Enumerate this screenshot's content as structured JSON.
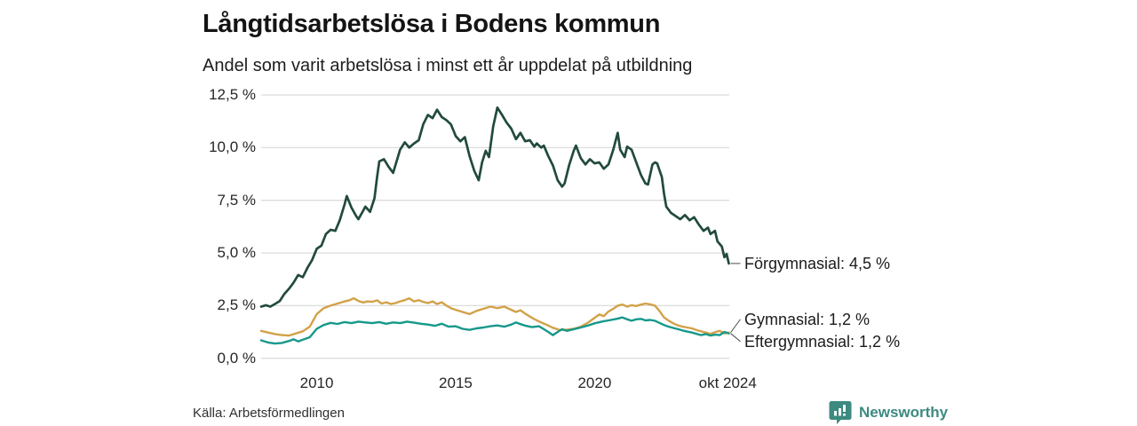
{
  "header": {
    "title": "Långtidsarbetslösa i Bodens kommun",
    "subtitle": "Andel som varit arbetslösa i minst ett år uppdelat på utbildning"
  },
  "footer": {
    "source": "Källa: Arbetsförmedlingen",
    "brand": "Newsworthy"
  },
  "colors": {
    "grid": "#dcdcdc",
    "connector": "#4a4a4a",
    "brand_teal": "#3c8a80",
    "series_forgymnasial": "#224a3f",
    "series_gymnasial": "#d2a148",
    "series_eftergymnasial": "#16988a"
  },
  "chart_data": {
    "type": "line",
    "title": "Långtidsarbetslösa i Bodens kommun",
    "subtitle": "Andel som varit arbetslösa i minst ett år uppdelat på utbildning",
    "unit": "%",
    "grid": "horizontal",
    "legend_position": "end-of-line labels, right side",
    "ylim": [
      0,
      12.5
    ],
    "x_range": [
      2008.0,
      2024.83
    ],
    "y_ticks": [
      {
        "label": "12,5 %",
        "value": 12.5
      },
      {
        "label": "10,0 %",
        "value": 10.0
      },
      {
        "label": "7,5 %",
        "value": 7.5
      },
      {
        "label": "5,0 %",
        "value": 5.0
      },
      {
        "label": "2,5 %",
        "value": 2.5
      },
      {
        "label": "0,0 %",
        "value": 0.0
      }
    ],
    "x_ticks": [
      {
        "label": "2010",
        "year": 2010
      },
      {
        "label": "2015",
        "year": 2015
      },
      {
        "label": "2020",
        "year": 2020
      },
      {
        "label": "okt 2024",
        "year": 2024.79
      }
    ],
    "source": "Källa: Arbetsförmedlingen",
    "series": [
      {
        "name": "Förgymnasial",
        "end_label": "Förgymnasial: 4,5 %",
        "end_value": "4,5 %",
        "color_key": "series_forgymnasial",
        "points": [
          [
            2008.0,
            2.45
          ],
          [
            2008.17,
            2.52
          ],
          [
            2008.33,
            2.45
          ],
          [
            2008.5,
            2.58
          ],
          [
            2008.67,
            2.72
          ],
          [
            2008.83,
            3.05
          ],
          [
            2009.0,
            3.3
          ],
          [
            2009.17,
            3.6
          ],
          [
            2009.33,
            3.95
          ],
          [
            2009.5,
            3.85
          ],
          [
            2009.67,
            4.3
          ],
          [
            2009.83,
            4.65
          ],
          [
            2010.0,
            5.2
          ],
          [
            2010.17,
            5.35
          ],
          [
            2010.33,
            5.9
          ],
          [
            2010.5,
            6.1
          ],
          [
            2010.67,
            6.05
          ],
          [
            2010.83,
            6.55
          ],
          [
            2011.0,
            7.3
          ],
          [
            2011.08,
            7.7
          ],
          [
            2011.25,
            7.15
          ],
          [
            2011.42,
            6.75
          ],
          [
            2011.5,
            6.6
          ],
          [
            2011.67,
            7.0
          ],
          [
            2011.75,
            7.2
          ],
          [
            2011.92,
            6.95
          ],
          [
            2012.08,
            7.6
          ],
          [
            2012.17,
            8.6
          ],
          [
            2012.25,
            9.35
          ],
          [
            2012.42,
            9.45
          ],
          [
            2012.58,
            9.1
          ],
          [
            2012.75,
            8.8
          ],
          [
            2012.92,
            9.55
          ],
          [
            2013.0,
            9.9
          ],
          [
            2013.17,
            10.25
          ],
          [
            2013.33,
            10.0
          ],
          [
            2013.5,
            10.2
          ],
          [
            2013.67,
            10.35
          ],
          [
            2013.83,
            11.1
          ],
          [
            2014.0,
            11.55
          ],
          [
            2014.17,
            11.4
          ],
          [
            2014.33,
            11.8
          ],
          [
            2014.5,
            11.45
          ],
          [
            2014.67,
            11.3
          ],
          [
            2014.83,
            11.1
          ],
          [
            2015.0,
            10.55
          ],
          [
            2015.17,
            10.3
          ],
          [
            2015.33,
            10.5
          ],
          [
            2015.5,
            9.6
          ],
          [
            2015.67,
            8.9
          ],
          [
            2015.83,
            8.45
          ],
          [
            2015.95,
            9.3
          ],
          [
            2016.08,
            9.85
          ],
          [
            2016.2,
            9.55
          ],
          [
            2016.35,
            11.0
          ],
          [
            2016.5,
            11.9
          ],
          [
            2016.67,
            11.55
          ],
          [
            2016.83,
            11.2
          ],
          [
            2017.0,
            10.9
          ],
          [
            2017.17,
            10.4
          ],
          [
            2017.33,
            10.7
          ],
          [
            2017.5,
            10.3
          ],
          [
            2017.67,
            10.35
          ],
          [
            2017.83,
            10.05
          ],
          [
            2017.92,
            10.2
          ],
          [
            2018.08,
            10.0
          ],
          [
            2018.17,
            10.1
          ],
          [
            2018.33,
            9.6
          ],
          [
            2018.5,
            9.15
          ],
          [
            2018.67,
            8.45
          ],
          [
            2018.83,
            8.15
          ],
          [
            2018.92,
            8.3
          ],
          [
            2019.08,
            9.15
          ],
          [
            2019.25,
            9.85
          ],
          [
            2019.33,
            10.1
          ],
          [
            2019.5,
            9.5
          ],
          [
            2019.67,
            9.2
          ],
          [
            2019.83,
            9.45
          ],
          [
            2020.0,
            9.25
          ],
          [
            2020.17,
            9.3
          ],
          [
            2020.33,
            9.0
          ],
          [
            2020.5,
            9.2
          ],
          [
            2020.67,
            9.9
          ],
          [
            2020.83,
            10.7
          ],
          [
            2020.92,
            9.9
          ],
          [
            2021.08,
            9.55
          ],
          [
            2021.17,
            10.05
          ],
          [
            2021.33,
            9.9
          ],
          [
            2021.5,
            9.3
          ],
          [
            2021.67,
            8.7
          ],
          [
            2021.83,
            8.3
          ],
          [
            2021.92,
            8.25
          ],
          [
            2022.08,
            9.2
          ],
          [
            2022.17,
            9.3
          ],
          [
            2022.25,
            9.25
          ],
          [
            2022.42,
            8.6
          ],
          [
            2022.5,
            7.8
          ],
          [
            2022.58,
            7.2
          ],
          [
            2022.75,
            6.9
          ],
          [
            2022.92,
            6.75
          ],
          [
            2023.08,
            6.6
          ],
          [
            2023.25,
            6.8
          ],
          [
            2023.42,
            6.55
          ],
          [
            2023.58,
            6.7
          ],
          [
            2023.75,
            6.35
          ],
          [
            2023.92,
            6.05
          ],
          [
            2024.08,
            6.2
          ],
          [
            2024.17,
            5.9
          ],
          [
            2024.33,
            6.05
          ],
          [
            2024.42,
            5.55
          ],
          [
            2024.58,
            5.3
          ],
          [
            2024.67,
            4.8
          ],
          [
            2024.75,
            4.95
          ],
          [
            2024.83,
            4.5
          ]
        ]
      },
      {
        "name": "Gymnasial",
        "end_label": "Gymnasial: 1,2 %",
        "end_value": "1,2 %",
        "color_key": "series_gymnasial",
        "points": [
          [
            2008.0,
            1.3
          ],
          [
            2008.25,
            1.22
          ],
          [
            2008.5,
            1.15
          ],
          [
            2008.75,
            1.1
          ],
          [
            2009.0,
            1.08
          ],
          [
            2009.25,
            1.18
          ],
          [
            2009.5,
            1.28
          ],
          [
            2009.75,
            1.5
          ],
          [
            2010.0,
            2.1
          ],
          [
            2010.25,
            2.38
          ],
          [
            2010.5,
            2.5
          ],
          [
            2010.75,
            2.6
          ],
          [
            2011.0,
            2.7
          ],
          [
            2011.17,
            2.75
          ],
          [
            2011.33,
            2.85
          ],
          [
            2011.5,
            2.72
          ],
          [
            2011.67,
            2.65
          ],
          [
            2011.83,
            2.7
          ],
          [
            2012.0,
            2.68
          ],
          [
            2012.17,
            2.75
          ],
          [
            2012.33,
            2.6
          ],
          [
            2012.5,
            2.66
          ],
          [
            2012.67,
            2.58
          ],
          [
            2012.83,
            2.62
          ],
          [
            2013.0,
            2.7
          ],
          [
            2013.17,
            2.76
          ],
          [
            2013.33,
            2.85
          ],
          [
            2013.5,
            2.7
          ],
          [
            2013.67,
            2.76
          ],
          [
            2013.83,
            2.68
          ],
          [
            2014.0,
            2.62
          ],
          [
            2014.17,
            2.7
          ],
          [
            2014.33,
            2.58
          ],
          [
            2014.5,
            2.66
          ],
          [
            2014.67,
            2.5
          ],
          [
            2014.83,
            2.38
          ],
          [
            2015.0,
            2.3
          ],
          [
            2015.25,
            2.2
          ],
          [
            2015.5,
            2.1
          ],
          [
            2015.75,
            2.25
          ],
          [
            2016.0,
            2.35
          ],
          [
            2016.25,
            2.45
          ],
          [
            2016.5,
            2.38
          ],
          [
            2016.75,
            2.45
          ],
          [
            2017.0,
            2.3
          ],
          [
            2017.17,
            2.2
          ],
          [
            2017.33,
            2.28
          ],
          [
            2017.5,
            2.12
          ],
          [
            2017.67,
            1.98
          ],
          [
            2017.83,
            1.86
          ],
          [
            2018.0,
            1.75
          ],
          [
            2018.25,
            1.6
          ],
          [
            2018.5,
            1.45
          ],
          [
            2018.75,
            1.34
          ],
          [
            2019.0,
            1.36
          ],
          [
            2019.25,
            1.4
          ],
          [
            2019.5,
            1.5
          ],
          [
            2019.75,
            1.68
          ],
          [
            2020.0,
            1.92
          ],
          [
            2020.17,
            2.08
          ],
          [
            2020.33,
            2.0
          ],
          [
            2020.5,
            2.22
          ],
          [
            2020.67,
            2.35
          ],
          [
            2020.83,
            2.5
          ],
          [
            2021.0,
            2.55
          ],
          [
            2021.17,
            2.45
          ],
          [
            2021.33,
            2.52
          ],
          [
            2021.5,
            2.48
          ],
          [
            2021.67,
            2.55
          ],
          [
            2021.83,
            2.6
          ],
          [
            2022.0,
            2.56
          ],
          [
            2022.17,
            2.5
          ],
          [
            2022.33,
            2.25
          ],
          [
            2022.5,
            1.94
          ],
          [
            2022.67,
            1.78
          ],
          [
            2022.83,
            1.66
          ],
          [
            2023.0,
            1.56
          ],
          [
            2023.17,
            1.5
          ],
          [
            2023.33,
            1.46
          ],
          [
            2023.5,
            1.42
          ],
          [
            2023.67,
            1.34
          ],
          [
            2023.83,
            1.28
          ],
          [
            2024.0,
            1.22
          ],
          [
            2024.17,
            1.16
          ],
          [
            2024.33,
            1.24
          ],
          [
            2024.5,
            1.3
          ],
          [
            2024.67,
            1.18
          ],
          [
            2024.83,
            1.22
          ]
        ]
      },
      {
        "name": "Eftergymnasial",
        "end_label": "Eftergymnasial: 1,2 %",
        "end_value": "1,2 %",
        "color_key": "series_eftergymnasial",
        "points": [
          [
            2008.0,
            0.85
          ],
          [
            2008.25,
            0.75
          ],
          [
            2008.5,
            0.7
          ],
          [
            2008.75,
            0.73
          ],
          [
            2009.0,
            0.82
          ],
          [
            2009.17,
            0.9
          ],
          [
            2009.33,
            0.8
          ],
          [
            2009.5,
            0.88
          ],
          [
            2009.75,
            1.0
          ],
          [
            2010.0,
            1.4
          ],
          [
            2010.25,
            1.58
          ],
          [
            2010.5,
            1.68
          ],
          [
            2010.75,
            1.63
          ],
          [
            2011.0,
            1.72
          ],
          [
            2011.25,
            1.67
          ],
          [
            2011.5,
            1.74
          ],
          [
            2011.75,
            1.7
          ],
          [
            2012.0,
            1.67
          ],
          [
            2012.25,
            1.72
          ],
          [
            2012.5,
            1.64
          ],
          [
            2012.75,
            1.7
          ],
          [
            2013.0,
            1.67
          ],
          [
            2013.25,
            1.74
          ],
          [
            2013.5,
            1.69
          ],
          [
            2013.75,
            1.64
          ],
          [
            2014.0,
            1.6
          ],
          [
            2014.25,
            1.54
          ],
          [
            2014.5,
            1.64
          ],
          [
            2014.75,
            1.5
          ],
          [
            2015.0,
            1.52
          ],
          [
            2015.25,
            1.4
          ],
          [
            2015.5,
            1.35
          ],
          [
            2015.75,
            1.42
          ],
          [
            2016.0,
            1.46
          ],
          [
            2016.25,
            1.52
          ],
          [
            2016.5,
            1.56
          ],
          [
            2016.75,
            1.5
          ],
          [
            2017.0,
            1.6
          ],
          [
            2017.17,
            1.7
          ],
          [
            2017.33,
            1.62
          ],
          [
            2017.5,
            1.55
          ],
          [
            2017.75,
            1.48
          ],
          [
            2018.0,
            1.52
          ],
          [
            2018.17,
            1.38
          ],
          [
            2018.33,
            1.25
          ],
          [
            2018.5,
            1.1
          ],
          [
            2018.67,
            1.25
          ],
          [
            2018.83,
            1.38
          ],
          [
            2019.0,
            1.3
          ],
          [
            2019.25,
            1.38
          ],
          [
            2019.5,
            1.46
          ],
          [
            2019.75,
            1.55
          ],
          [
            2020.0,
            1.66
          ],
          [
            2020.25,
            1.74
          ],
          [
            2020.5,
            1.8
          ],
          [
            2020.75,
            1.86
          ],
          [
            2021.0,
            1.94
          ],
          [
            2021.17,
            1.85
          ],
          [
            2021.33,
            1.78
          ],
          [
            2021.5,
            1.85
          ],
          [
            2021.67,
            1.87
          ],
          [
            2021.83,
            1.8
          ],
          [
            2022.0,
            1.82
          ],
          [
            2022.17,
            1.78
          ],
          [
            2022.33,
            1.68
          ],
          [
            2022.5,
            1.58
          ],
          [
            2022.67,
            1.5
          ],
          [
            2022.83,
            1.44
          ],
          [
            2023.0,
            1.38
          ],
          [
            2023.17,
            1.32
          ],
          [
            2023.33,
            1.27
          ],
          [
            2023.5,
            1.22
          ],
          [
            2023.67,
            1.16
          ],
          [
            2023.83,
            1.1
          ],
          [
            2024.0,
            1.15
          ],
          [
            2024.17,
            1.08
          ],
          [
            2024.33,
            1.12
          ],
          [
            2024.5,
            1.1
          ],
          [
            2024.67,
            1.25
          ],
          [
            2024.83,
            1.18
          ]
        ]
      }
    ]
  }
}
